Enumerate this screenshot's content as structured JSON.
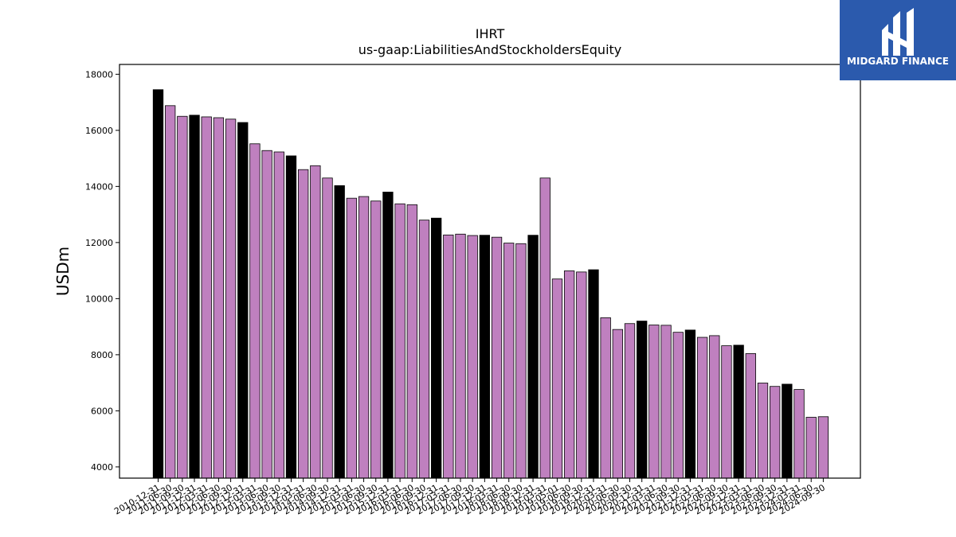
{
  "chart_data": {
    "type": "bar",
    "title": "IHRT",
    "subtitle": "us-gaap:LiabilitiesAndStockholdersEquity",
    "xlabel": "",
    "ylabel": "USDm",
    "ylim": [
      3600,
      18350
    ],
    "yticks": [
      4000,
      6000,
      8000,
      10000,
      12000,
      14000,
      16000,
      18000
    ],
    "grid": false,
    "categories": [
      "2010-12-31",
      "2011-06-30",
      "2011-09-30",
      "2011-12-31",
      "2012-03-31",
      "2012-06-30",
      "2012-09-30",
      "2012-12-31",
      "2013-03-31",
      "2013-06-30",
      "2013-09-30",
      "2013-12-31",
      "2014-03-31",
      "2014-06-30",
      "2014-09-30",
      "2014-12-31",
      "2015-03-31",
      "2015-06-30",
      "2015-09-30",
      "2015-12-31",
      "2016-03-31",
      "2016-06-30",
      "2016-09-30",
      "2016-12-31",
      "2017-03-31",
      "2017-06-30",
      "2017-09-30",
      "2017-12-31",
      "2018-03-31",
      "2018-06-30",
      "2018-09-30",
      "2018-12-31",
      "2019-03-31",
      "2019-05-01",
      "2019-06-30",
      "2019-09-30",
      "2019-12-31",
      "2020-03-31",
      "2020-06-30",
      "2020-09-30",
      "2020-12-31",
      "2021-03-31",
      "2021-06-30",
      "2021-09-30",
      "2021-12-31",
      "2022-03-31",
      "2022-06-30",
      "2022-09-30",
      "2022-12-31",
      "2023-03-31",
      "2023-06-30",
      "2023-09-30",
      "2023-12-31",
      "2024-03-31",
      "2024-06-30",
      "2024-09-30"
    ],
    "values": [
      17450,
      16880,
      16500,
      16540,
      16480,
      16450,
      16400,
      16280,
      15520,
      15280,
      15230,
      15090,
      14600,
      14740,
      14300,
      14030,
      13580,
      13640,
      13480,
      13800,
      13380,
      13350,
      12800,
      12870,
      12270,
      12300,
      12250,
      12260,
      12190,
      11980,
      11960,
      12260,
      14300,
      10700,
      10990,
      10950,
      11030,
      9320,
      8900,
      9110,
      9200,
      9060,
      9050,
      8800,
      8880,
      8620,
      8680,
      8320,
      8340,
      8040,
      6990,
      6870,
      6950,
      6760,
      5770,
      5790
    ],
    "annual_bar_color": "#000000",
    "quarter_bar_color": "#bf80bf",
    "bar_edge_color": "#000000"
  },
  "logo": {
    "text": "MIDGARD FINANCE",
    "background": "#2b5aad"
  }
}
